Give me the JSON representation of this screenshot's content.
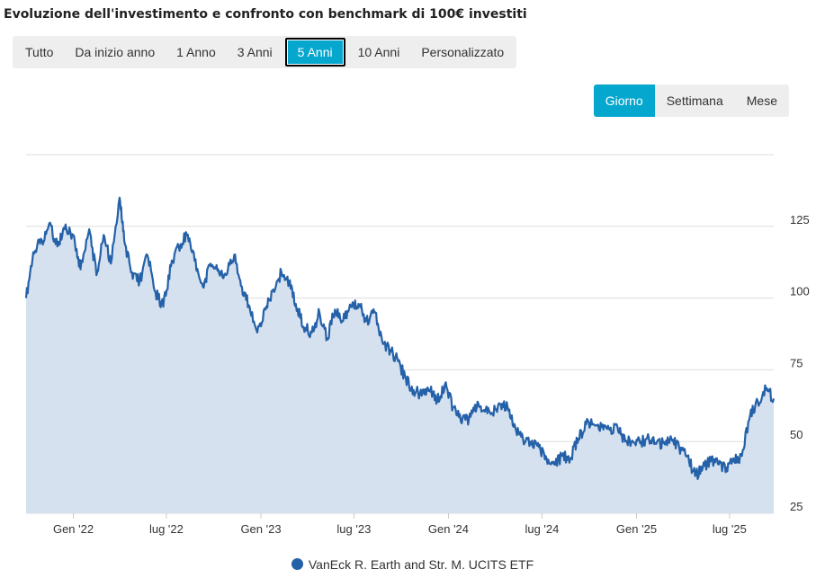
{
  "title": "Evoluzione dell'investimento e confronto con benchmark di 100€ investiti",
  "range_buttons": [
    "Tutto",
    "Da inizio anno",
    "1 Anno",
    "3 Anni",
    "5 Anni",
    "10 Anni",
    "Personalizzato"
  ],
  "range_selected": "5 Anni",
  "period_buttons": [
    "Giorno",
    "Settimana",
    "Mese"
  ],
  "period_selected": "Giorno",
  "colors": {
    "accent": "#06a7cf",
    "series_line": "#2561a8",
    "series_fill": "#d5e1ef",
    "grid": "#dddddd"
  },
  "chart_data": {
    "type": "area",
    "x_tick_labels": [
      "Gen '22",
      "lug '22",
      "Gen '23",
      "lug '23",
      "Gen '24",
      "lug '24",
      "Gen '25",
      "lug '25"
    ],
    "y_tick_labels": [
      "25",
      "50",
      "75",
      "100",
      "125"
    ],
    "ylim": [
      25,
      150
    ],
    "grid": true,
    "legend_position": "bottom-center",
    "series": [
      {
        "name": "VanEck R. Earth and Str. M. UCITS ETF",
        "x": [
          "2021-10-01",
          "2021-10-15",
          "2021-11-01",
          "2021-11-15",
          "2021-12-01",
          "2021-12-15",
          "2022-01-01",
          "2022-01-15",
          "2022-02-01",
          "2022-02-15",
          "2022-03-01",
          "2022-03-15",
          "2022-04-01",
          "2022-04-10",
          "2022-04-25",
          "2022-05-10",
          "2022-05-25",
          "2022-06-10",
          "2022-06-25",
          "2022-07-10",
          "2022-07-25",
          "2022-08-10",
          "2022-08-25",
          "2022-09-10",
          "2022-09-25",
          "2022-10-10",
          "2022-10-25",
          "2022-11-10",
          "2022-11-25",
          "2022-12-10",
          "2022-12-25",
          "2023-01-10",
          "2023-01-25",
          "2023-02-10",
          "2023-02-25",
          "2023-03-10",
          "2023-03-25",
          "2023-04-10",
          "2023-04-25",
          "2023-05-10",
          "2023-05-25",
          "2023-06-10",
          "2023-06-25",
          "2023-07-10",
          "2023-07-25",
          "2023-08-10",
          "2023-08-25",
          "2023-09-10",
          "2023-09-25",
          "2023-10-10",
          "2023-10-25",
          "2023-11-10",
          "2023-11-25",
          "2023-12-10",
          "2023-12-25",
          "2024-01-10",
          "2024-01-25",
          "2024-02-10",
          "2024-02-25",
          "2024-03-10",
          "2024-03-25",
          "2024-04-10",
          "2024-04-25",
          "2024-05-10",
          "2024-05-25",
          "2024-06-10",
          "2024-06-25",
          "2024-07-10",
          "2024-07-25",
          "2024-08-10",
          "2024-08-25",
          "2024-09-10",
          "2024-09-25",
          "2024-10-10",
          "2024-10-25",
          "2024-11-10",
          "2024-11-25",
          "2024-12-10",
          "2024-12-25",
          "2025-01-10",
          "2025-01-25",
          "2025-02-10",
          "2025-02-25",
          "2025-03-10",
          "2025-03-25",
          "2025-04-10",
          "2025-04-25",
          "2025-05-10",
          "2025-05-25",
          "2025-06-10",
          "2025-06-25",
          "2025-07-10",
          "2025-07-25",
          "2025-08-10",
          "2025-08-25",
          "2025-09-10",
          "2025-09-25"
        ],
        "y": [
          100,
          116,
          120,
          126,
          118,
          124,
          122,
          110,
          124,
          108,
          122,
          112,
          135,
          120,
          109,
          106,
          115,
          102,
          97,
          111,
          118,
          122,
          113,
          104,
          112,
          110,
          108,
          115,
          104,
          97,
          88,
          96,
          103,
          109,
          105,
          98,
          90,
          88,
          95,
          86,
          96,
          92,
          97,
          98,
          92,
          95,
          85,
          82,
          78,
          72,
          68,
          66,
          68,
          64,
          70,
          62,
          57,
          58,
          62,
          61,
          60,
          63,
          62,
          55,
          51,
          49,
          48,
          44,
          42,
          45,
          44,
          51,
          56,
          56,
          55,
          54,
          55,
          50,
          50,
          50,
          51,
          50,
          49,
          51,
          48,
          45,
          38,
          41,
          43,
          42,
          41,
          43,
          45,
          59,
          64,
          68,
          65
        ]
      }
    ]
  }
}
